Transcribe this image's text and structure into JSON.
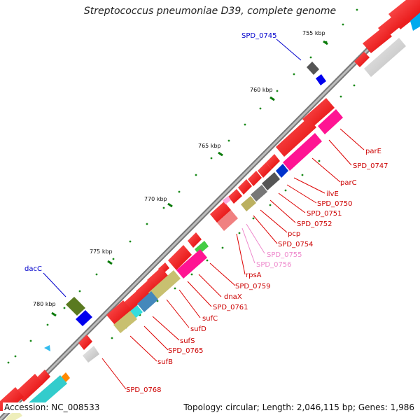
{
  "title": "Streptococcus pneumoniae D39, complete genome",
  "footer": {
    "accession_label": "Accession:",
    "accession": "NC_008533",
    "topology_label": "Topology:",
    "topology": "circular",
    "length_label": "Length:",
    "length": "2,046,115 bp",
    "genes_label": "Genes:",
    "genes": "1,986"
  },
  "tick_labels": [
    "755 kbp",
    "760 kbp",
    "765 kbp",
    "770 kbp",
    "775 kbp",
    "780 kbp"
  ],
  "gene_labels": {
    "outer": [
      "SPD_0745",
      "dacC"
    ],
    "inner": [
      "parE",
      "SPD_0747",
      "parC",
      "ilvE",
      "SPD_0750",
      "SPD_0751",
      "SPD_0752",
      "pcp",
      "SPD_0754",
      "SPD_0755",
      "SPD_0756",
      "rpsA",
      "SPD_0759",
      "dnaX",
      "SPD_0761",
      "sufC",
      "sufD",
      "sufS",
      "SPD_0765",
      "sufB",
      "SPD_0768"
    ]
  },
  "colors": {
    "forward_gene": "#ff0000",
    "outer_label": "#0000cc",
    "inner_label": "#cc0000",
    "pseudo_label": "#ee88cc",
    "backbone": "#888888",
    "tick": "#0a7a0a"
  }
}
